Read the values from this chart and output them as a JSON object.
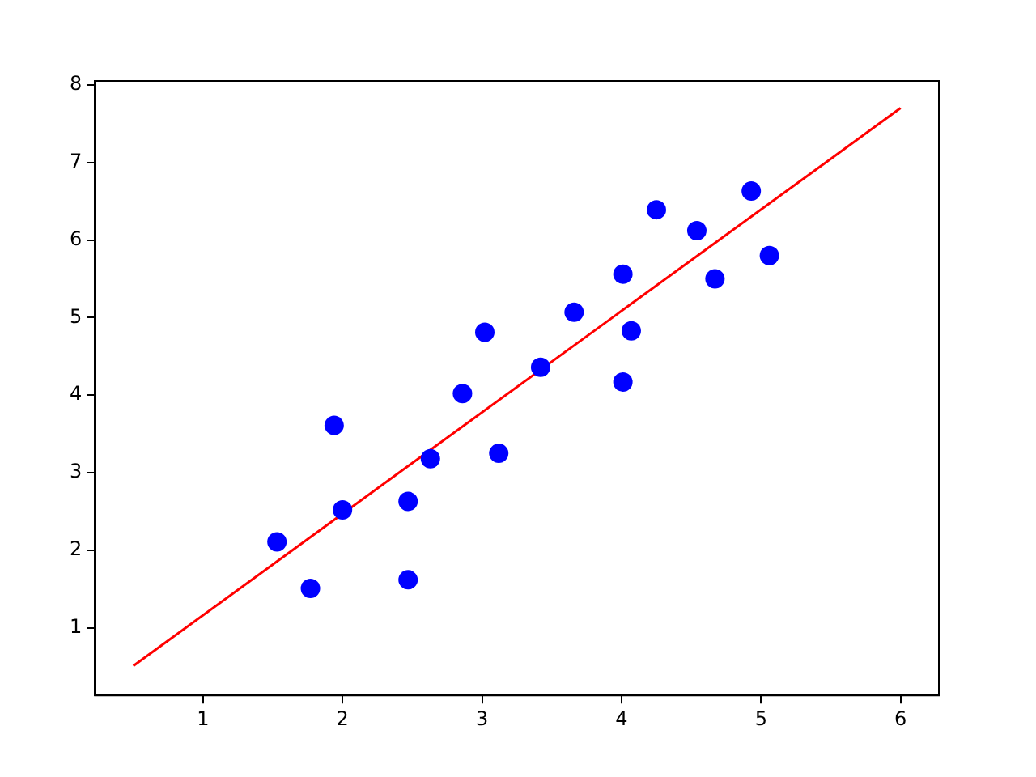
{
  "chart_data": {
    "type": "scatter",
    "xlim": [
      0.225,
      6.275
    ],
    "ylim": [
      0.13,
      8.05
    ],
    "xticks": [
      1,
      2,
      3,
      4,
      5,
      6
    ],
    "yticks": [
      1,
      2,
      3,
      4,
      5,
      6,
      7,
      8
    ],
    "grid": false,
    "legend": false,
    "series": [
      {
        "type": "scatter",
        "color": "#0000ff",
        "marker": "circle",
        "x": [
          1.53,
          1.77,
          1.94,
          2.0,
          2.47,
          2.47,
          2.63,
          2.86,
          3.02,
          3.12,
          3.42,
          3.66,
          4.01,
          4.01,
          4.07,
          4.25,
          4.54,
          4.67,
          4.93,
          5.06
        ],
        "values": [
          2.11,
          1.51,
          3.61,
          2.52,
          2.63,
          1.62,
          3.18,
          4.02,
          4.81,
          3.25,
          4.36,
          5.07,
          5.56,
          4.17,
          4.83,
          6.39,
          6.12,
          5.5,
          6.63,
          5.8
        ]
      },
      {
        "type": "line",
        "color": "#ff0000",
        "marker": "none",
        "x": [
          0.5,
          6.0
        ],
        "values": [
          0.51,
          7.7
        ]
      }
    ]
  }
}
